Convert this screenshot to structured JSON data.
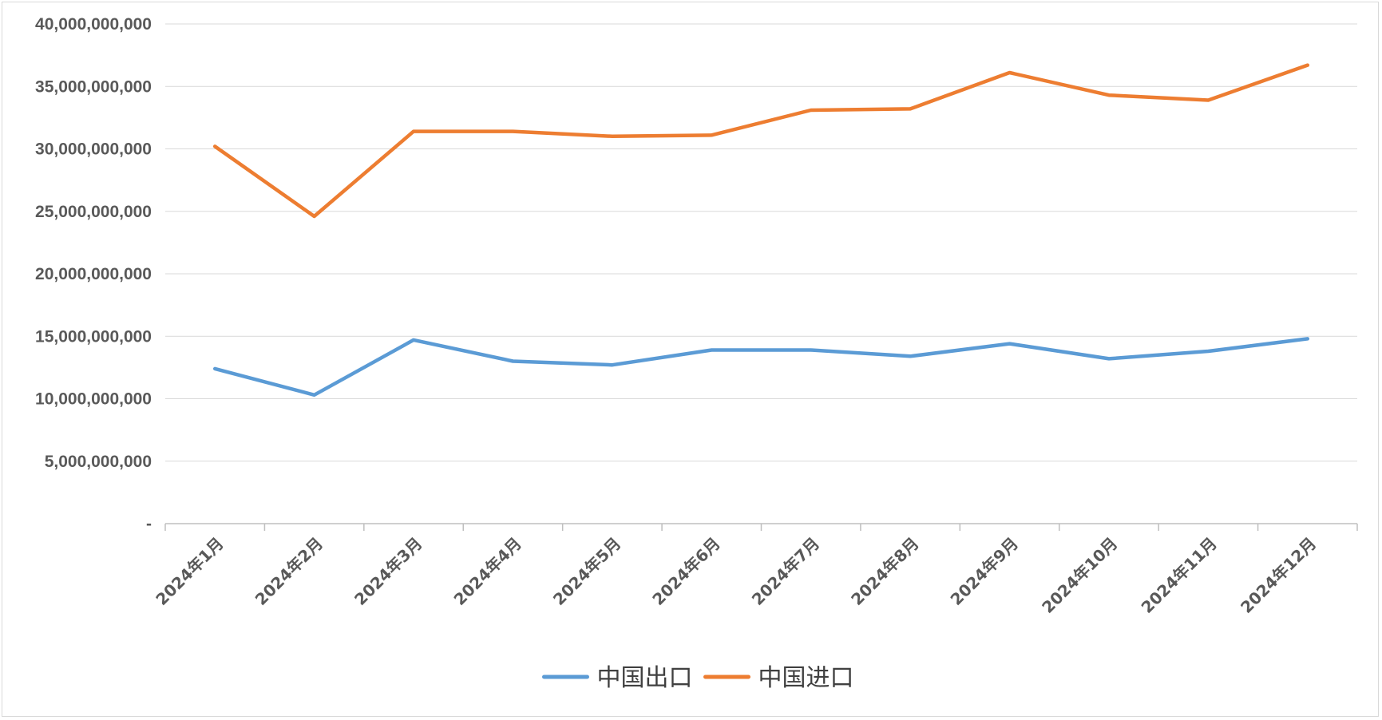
{
  "chart_data": {
    "type": "line",
    "title": "",
    "xlabel": "",
    "ylabel": "",
    "categories": [
      "2024年1月",
      "2024年2月",
      "2024年3月",
      "2024年4月",
      "2024年5月",
      "2024年6月",
      "2024年7月",
      "2024年8月",
      "2024年9月",
      "2024年10月",
      "2024年11月",
      "2024年12月"
    ],
    "ylim": [
      0,
      40000000000
    ],
    "y_ticks": [
      0,
      5000000000,
      10000000000,
      15000000000,
      20000000000,
      25000000000,
      30000000000,
      35000000000,
      40000000000
    ],
    "y_tick_labels": [
      "-",
      "5,000,000,000",
      "10,000,000,000",
      "15,000,000,000",
      "20,000,000,000",
      "25,000,000,000",
      "30,000,000,000",
      "35,000,000,000",
      "40,000,000,000"
    ],
    "grid": true,
    "legend_position": "bottom",
    "series": [
      {
        "name": "中国出口",
        "color": "#5b9bd5",
        "values": [
          12400000000,
          10300000000,
          14700000000,
          13000000000,
          12700000000,
          13900000000,
          13900000000,
          13400000000,
          14400000000,
          13200000000,
          13800000000,
          14800000000
        ]
      },
      {
        "name": "中国进口",
        "color": "#ed7d31",
        "values": [
          30200000000,
          24600000000,
          31400000000,
          31400000000,
          31000000000,
          31100000000,
          33100000000,
          33200000000,
          36100000000,
          34300000000,
          33900000000,
          36700000000
        ]
      }
    ]
  }
}
